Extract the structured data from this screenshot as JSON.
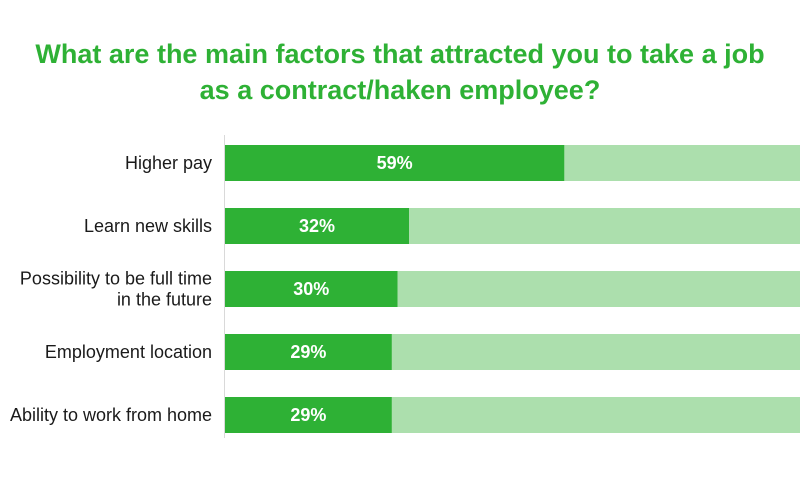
{
  "chart_data": {
    "type": "bar",
    "orientation": "horizontal",
    "stacked_to_100": true,
    "title_lines": [
      "What are the main factors that attracted you to take a job",
      "as a contract/haken employee?"
    ],
    "categories": [
      [
        "Higher pay"
      ],
      [
        "Learn new skills"
      ],
      [
        "Possibility to be full time",
        "in the future"
      ],
      [
        "Employment location"
      ],
      [
        "Ability to work from home"
      ]
    ],
    "values": [
      59,
      32,
      30,
      29,
      29
    ],
    "data_labels": [
      "59%",
      "32%",
      "30%",
      "29%",
      "29%"
    ],
    "xlim": [
      0,
      100
    ],
    "grid": false,
    "colors": {
      "title": "#2eb135",
      "bar": "#2eb135",
      "bar_remainder": "#acdfad",
      "bar_label": "#ffffff",
      "category_label": "#1a1a1a",
      "axis_line": "#d9d9d9"
    }
  }
}
